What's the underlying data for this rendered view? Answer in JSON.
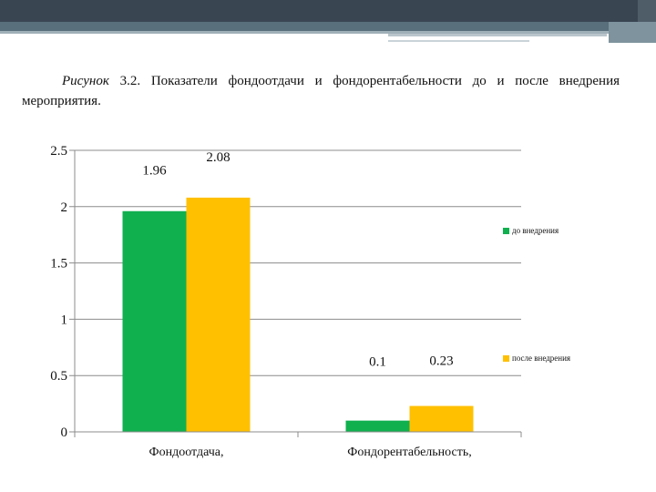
{
  "caption": {
    "label": "Рисунок",
    "text": "3.2. Показатели фондоотдачи и фондорентабельности до и после внедрения мероприятия."
  },
  "chart_data": {
    "type": "bar",
    "categories": [
      "Фондоотдача,",
      "Фондорентабельность,"
    ],
    "series": [
      {
        "name": "до внедрения",
        "color": "#10b04f",
        "values": [
          1.96,
          0.1
        ]
      },
      {
        "name": "после внедрения",
        "color": "#ffc000",
        "values": [
          2.08,
          0.23
        ]
      }
    ],
    "data_labels": [
      [
        "1.96",
        "0.1"
      ],
      [
        "2.08",
        "0.23"
      ]
    ],
    "ylim": [
      0,
      2.5
    ],
    "yticks": [
      0,
      0.5,
      1,
      1.5,
      2,
      2.5
    ],
    "ytick_labels": [
      "0",
      "0.5",
      "1",
      "1.5",
      "2",
      "2.5"
    ],
    "grid": true,
    "legend": "right"
  }
}
